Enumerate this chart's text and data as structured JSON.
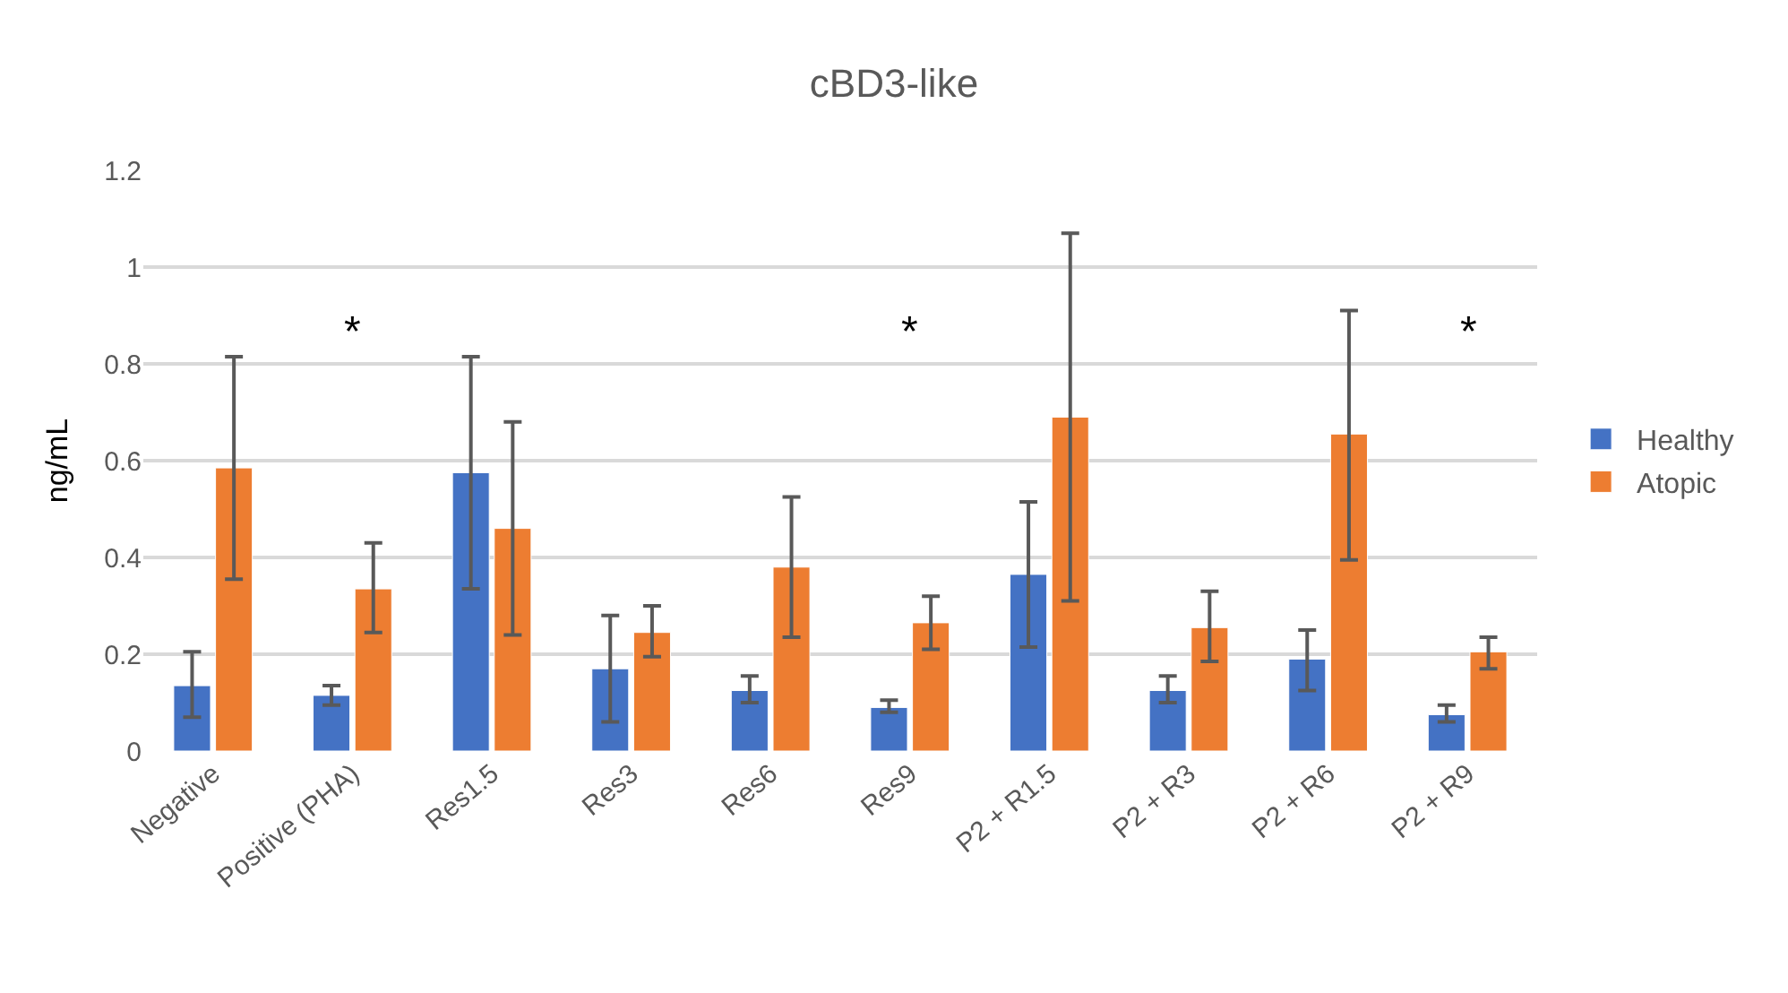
{
  "chart_data": {
    "type": "bar",
    "title": "cBD3-like",
    "ylabel": "ng/mL",
    "categories": [
      "Negative",
      "Positive (PHA)",
      "Res1.5",
      "Res3",
      "Res6",
      "Res9",
      "P2 + R1.5",
      "P2 + R3",
      "P2 + R6",
      "P2 + R9"
    ],
    "series": [
      {
        "name": "Healthy",
        "color": "#4472c4",
        "values": [
          0.135,
          0.115,
          0.575,
          0.17,
          0.125,
          0.09,
          0.365,
          0.125,
          0.19,
          0.075
        ],
        "errors": [
          [
            0.07,
            0.205
          ],
          [
            0.095,
            0.135
          ],
          [
            0.335,
            0.815
          ],
          [
            0.06,
            0.28
          ],
          [
            0.1,
            0.155
          ],
          [
            0.08,
            0.105
          ],
          [
            0.215,
            0.515
          ],
          [
            0.1,
            0.155
          ],
          [
            0.125,
            0.25
          ],
          [
            0.06,
            0.095
          ]
        ]
      },
      {
        "name": "Atopic",
        "color": "#ed7d31",
        "values": [
          0.585,
          0.335,
          0.46,
          0.245,
          0.38,
          0.265,
          0.69,
          0.255,
          0.655,
          0.205
        ],
        "errors": [
          [
            0.355,
            0.815
          ],
          [
            0.245,
            0.43
          ],
          [
            0.24,
            0.68
          ],
          [
            0.195,
            0.3
          ],
          [
            0.235,
            0.525
          ],
          [
            0.21,
            0.32
          ],
          [
            0.31,
            1.07
          ],
          [
            0.185,
            0.33
          ],
          [
            0.395,
            0.91
          ],
          [
            0.17,
            0.235
          ]
        ]
      }
    ],
    "annotations": [
      "*",
      "*",
      "*"
    ],
    "ylim": [
      0,
      1.2
    ],
    "yticks": [
      0,
      0.2,
      0.4,
      0.6,
      0.8,
      1,
      1.2
    ],
    "grid": "y",
    "legend": "right"
  }
}
